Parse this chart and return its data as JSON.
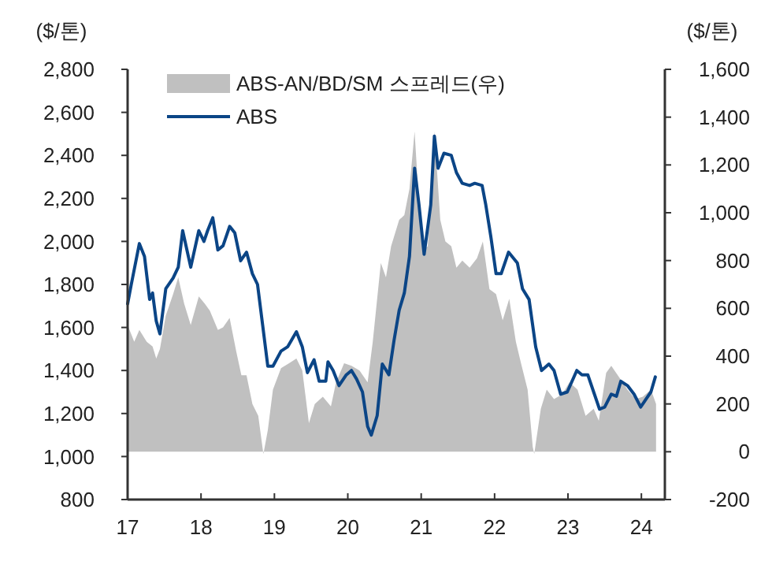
{
  "chart_data": {
    "type": "line",
    "ylabel": "($/톤)",
    "y2label": "($/톤)",
    "xlim": [
      2017,
      2024.32
    ],
    "xticks": [
      {
        "value": 2017,
        "label": "17"
      },
      {
        "value": 2018,
        "label": "18"
      },
      {
        "value": 2019,
        "label": "19"
      },
      {
        "value": 2020,
        "label": "20"
      },
      {
        "value": 2021,
        "label": "21"
      },
      {
        "value": 2022,
        "label": "22"
      },
      {
        "value": 2023,
        "label": "23"
      },
      {
        "value": 2024,
        "label": "24"
      }
    ],
    "ylim": [
      800,
      2800
    ],
    "yticks": [
      {
        "value": 800,
        "label": "800"
      },
      {
        "value": 1000,
        "label": "1,000"
      },
      {
        "value": 1200,
        "label": "1,200"
      },
      {
        "value": 1400,
        "label": "1,400"
      },
      {
        "value": 1600,
        "label": "1,600"
      },
      {
        "value": 1800,
        "label": "1,800"
      },
      {
        "value": 2000,
        "label": "2,000"
      },
      {
        "value": 2200,
        "label": "2,200"
      },
      {
        "value": 2400,
        "label": "2,400"
      },
      {
        "value": 2600,
        "label": "2,600"
      },
      {
        "value": 2800,
        "label": "2,800"
      }
    ],
    "y2lim": [
      -200,
      1600
    ],
    "y2ticks": [
      -200,
      0,
      200,
      400,
      600,
      800,
      {
        "value": 1000,
        "label": "1,000"
      },
      {
        "value": 1200,
        "label": "1,200"
      },
      {
        "value": 1400,
        "label": "1,400"
      },
      {
        "value": 1600,
        "label": "1,600"
      }
    ],
    "grid": false,
    "legend": "top left",
    "series": [
      {
        "name": "ABS-AN/BD/SM 스프레드(우)",
        "type": "area",
        "axis": "y2",
        "color": "#c0c0c0",
        "x": [
          2017.0,
          2017.09,
          2017.16,
          2017.26,
          2017.34,
          2017.39,
          2017.44,
          2017.52,
          2017.62,
          2017.69,
          2017.77,
          2017.86,
          2017.97,
          2018.05,
          2018.12,
          2018.23,
          2018.3,
          2018.39,
          2018.48,
          2018.55,
          2018.62,
          2018.7,
          2018.78,
          2018.85,
          2018.91,
          2018.98,
          2019.09,
          2019.2,
          2019.3,
          2019.38,
          2019.47,
          2019.55,
          2019.66,
          2019.77,
          2019.84,
          2019.95,
          2020.05,
          2020.16,
          2020.27,
          2020.34,
          2020.45,
          2020.52,
          2020.59,
          2020.7,
          2020.77,
          2020.84,
          2020.91,
          2020.95,
          2021.02,
          2021.09,
          2021.18,
          2021.26,
          2021.33,
          2021.41,
          2021.48,
          2021.56,
          2021.66,
          2021.76,
          2021.84,
          2021.93,
          2022.02,
          2022.11,
          2022.2,
          2022.29,
          2022.36,
          2022.45,
          2022.52,
          2022.54,
          2022.63,
          2022.71,
          2022.81,
          2022.92,
          2023.02,
          2023.13,
          2023.24,
          2023.35,
          2023.42,
          2023.52,
          2023.59,
          2023.7,
          2023.81,
          2023.92,
          2024.02,
          2024.13,
          2024.2
        ],
        "values": [
          530,
          460,
          510,
          460,
          440,
          390,
          430,
          570,
          660,
          730,
          620,
          530,
          650,
          620,
          590,
          510,
          520,
          560,
          420,
          320,
          320,
          200,
          150,
          -10,
          90,
          260,
          350,
          370,
          390,
          340,
          120,
          200,
          230,
          190,
          290,
          370,
          360,
          340,
          290,
          460,
          790,
          730,
          860,
          970,
          990,
          1100,
          1340,
          1140,
          840,
          860,
          1340,
          970,
          880,
          860,
          770,
          800,
          770,
          810,
          880,
          680,
          660,
          550,
          640,
          460,
          370,
          260,
          20,
          -10,
          180,
          260,
          220,
          240,
          290,
          260,
          150,
          180,
          130,
          330,
          360,
          310,
          260,
          220,
          230,
          260,
          200
        ]
      },
      {
        "name": "ABS",
        "type": "line",
        "color": "#0b4586",
        "x": [
          2017.0,
          2017.05,
          2017.16,
          2017.23,
          2017.3,
          2017.34,
          2017.39,
          2017.44,
          2017.52,
          2017.62,
          2017.69,
          2017.75,
          2017.86,
          2017.97,
          2018.04,
          2018.09,
          2018.16,
          2018.23,
          2018.3,
          2018.39,
          2018.46,
          2018.54,
          2018.62,
          2018.7,
          2018.77,
          2018.84,
          2018.91,
          2018.98,
          2019.09,
          2019.18,
          2019.3,
          2019.38,
          2019.45,
          2019.54,
          2019.61,
          2019.7,
          2019.73,
          2019.8,
          2019.88,
          2019.98,
          2020.05,
          2020.12,
          2020.2,
          2020.27,
          2020.32,
          2020.4,
          2020.47,
          2020.56,
          2020.63,
          2020.7,
          2020.77,
          2020.84,
          2020.91,
          2020.97,
          2021.04,
          2021.13,
          2021.18,
          2021.23,
          2021.31,
          2021.41,
          2021.48,
          2021.56,
          2021.66,
          2021.73,
          2021.83,
          2021.88,
          2021.95,
          2022.02,
          2022.09,
          2022.19,
          2022.31,
          2022.38,
          2022.47,
          2022.56,
          2022.64,
          2022.74,
          2022.81,
          2022.9,
          2022.99,
          2023.12,
          2023.19,
          2023.27,
          2023.36,
          2023.43,
          2023.5,
          2023.59,
          2023.66,
          2023.72,
          2023.81,
          2023.9,
          2023.99,
          2024.07,
          2024.13,
          2024.19
        ],
        "values": [
          1710,
          1800,
          1990,
          1930,
          1730,
          1760,
          1630,
          1570,
          1780,
          1830,
          1880,
          2050,
          1880,
          2050,
          2000,
          2050,
          2110,
          1960,
          1980,
          2070,
          2040,
          1910,
          1950,
          1850,
          1800,
          1610,
          1420,
          1420,
          1490,
          1510,
          1580,
          1510,
          1390,
          1450,
          1350,
          1350,
          1440,
          1400,
          1330,
          1380,
          1400,
          1360,
          1300,
          1140,
          1100,
          1190,
          1430,
          1380,
          1540,
          1680,
          1760,
          1930,
          2340,
          2170,
          1940,
          2170,
          2490,
          2340,
          2410,
          2400,
          2320,
          2270,
          2260,
          2270,
          2260,
          2170,
          2020,
          1850,
          1850,
          1950,
          1900,
          1780,
          1730,
          1510,
          1400,
          1430,
          1400,
          1290,
          1300,
          1400,
          1380,
          1380,
          1290,
          1220,
          1230,
          1290,
          1280,
          1350,
          1330,
          1290,
          1230,
          1270,
          1300,
          1370
        ]
      }
    ]
  }
}
